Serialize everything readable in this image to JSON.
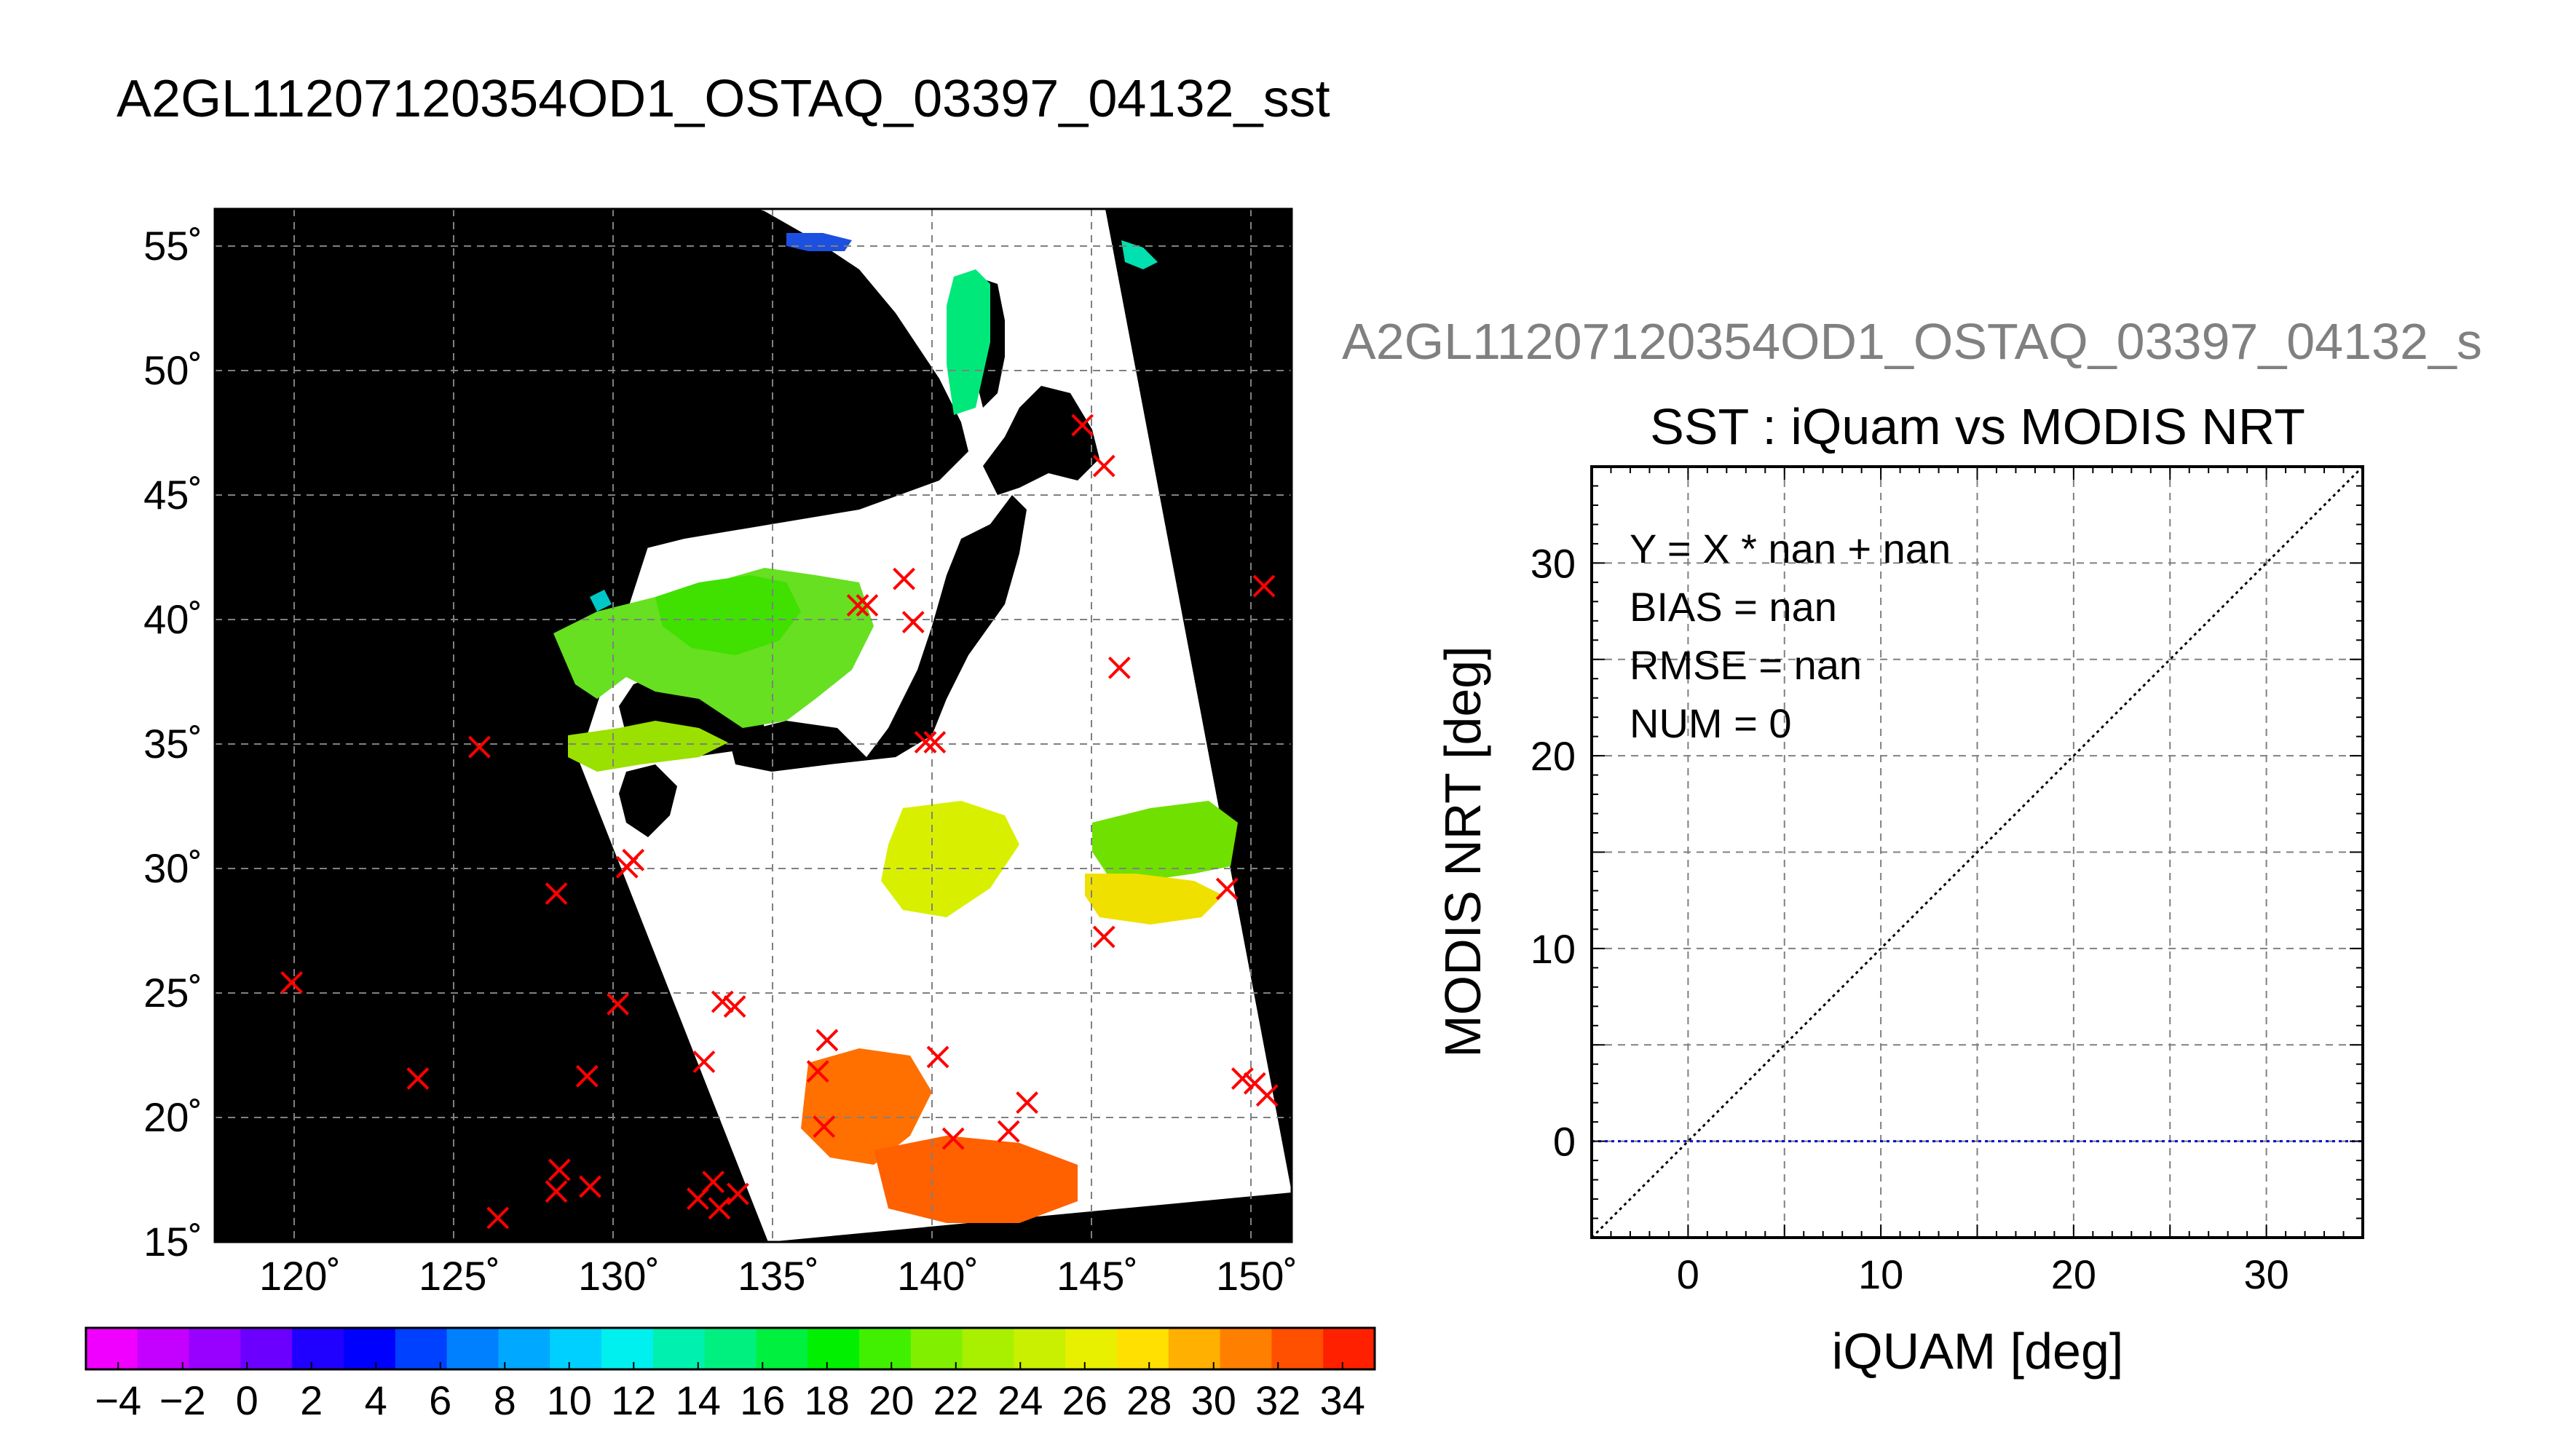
{
  "page_title": "A2GL11207120354OD1_OSTAQ_03397_04132_sst",
  "chart_data": [
    {
      "type": "map",
      "name": "sst-map",
      "lon_range": [
        117,
        152
      ],
      "lat_range": [
        14,
        57
      ],
      "x_ticks": [
        120,
        125,
        130,
        135,
        140,
        145,
        150
      ],
      "y_ticks": [
        15,
        20,
        25,
        30,
        35,
        40,
        45,
        50,
        55
      ],
      "x_tick_labels": [
        "120˚",
        "125˚",
        "130˚",
        "135˚",
        "140˚",
        "145˚",
        "150˚"
      ],
      "y_tick_labels": [
        "15˚",
        "20˚",
        "25˚",
        "30˚",
        "35˚",
        "40˚",
        "45˚",
        "50˚",
        "55˚"
      ],
      "grid": true,
      "background_color": "#000000",
      "swath_color": "#ffffff",
      "marker_color": "#ff0000",
      "markers": [
        {
          "lon": 119.5,
          "lat": 24.8
        },
        {
          "lon": 123.6,
          "lat": 20.8
        },
        {
          "lon": 125.6,
          "lat": 34.6
        },
        {
          "lon": 126.2,
          "lat": 15.0
        },
        {
          "lon": 128.1,
          "lat": 28.5
        },
        {
          "lon": 128.2,
          "lat": 17.0
        },
        {
          "lon": 128.1,
          "lat": 16.1
        },
        {
          "lon": 129.1,
          "lat": 20.9
        },
        {
          "lon": 129.2,
          "lat": 16.3
        },
        {
          "lon": 130.1,
          "lat": 23.9
        },
        {
          "lon": 130.4,
          "lat": 29.6
        },
        {
          "lon": 130.6,
          "lat": 29.9
        },
        {
          "lon": 132.7,
          "lat": 15.8
        },
        {
          "lon": 132.9,
          "lat": 21.5
        },
        {
          "lon": 133.2,
          "lat": 16.5
        },
        {
          "lon": 133.4,
          "lat": 15.4
        },
        {
          "lon": 133.5,
          "lat": 24.0
        },
        {
          "lon": 133.9,
          "lat": 23.8
        },
        {
          "lon": 134.0,
          "lat": 16.0
        },
        {
          "lon": 136.6,
          "lat": 21.1
        },
        {
          "lon": 136.8,
          "lat": 18.8
        },
        {
          "lon": 136.9,
          "lat": 22.4
        },
        {
          "lon": 137.9,
          "lat": 40.5
        },
        {
          "lon": 138.2,
          "lat": 40.5
        },
        {
          "lon": 139.4,
          "lat": 41.6
        },
        {
          "lon": 139.7,
          "lat": 39.8
        },
        {
          "lon": 140.1,
          "lat": 34.8
        },
        {
          "lon": 140.4,
          "lat": 34.8
        },
        {
          "lon": 140.5,
          "lat": 21.7
        },
        {
          "lon": 141.0,
          "lat": 18.3
        },
        {
          "lon": 142.8,
          "lat": 18.6
        },
        {
          "lon": 143.4,
          "lat": 19.8
        },
        {
          "lon": 145.2,
          "lat": 48.0
        },
        {
          "lon": 145.9,
          "lat": 46.3
        },
        {
          "lon": 145.9,
          "lat": 26.7
        },
        {
          "lon": 146.4,
          "lat": 37.9
        },
        {
          "lon": 149.9,
          "lat": 28.7
        },
        {
          "lon": 150.4,
          "lat": 20.8
        },
        {
          "lon": 150.8,
          "lat": 20.6
        },
        {
          "lon": 151.1,
          "lat": 41.3
        },
        {
          "lon": 151.2,
          "lat": 20.1
        }
      ]
    },
    {
      "type": "colorbar",
      "name": "sst-colorbar",
      "range": [
        -5,
        35
      ],
      "tick_values": [
        -4,
        -2,
        0,
        2,
        4,
        6,
        8,
        10,
        12,
        14,
        16,
        18,
        20,
        22,
        24,
        26,
        28,
        30,
        32,
        34
      ],
      "tick_labels": [
        "−4",
        "−2",
        "0",
        "2",
        "4",
        "6",
        "8",
        "10",
        "12",
        "14",
        "16",
        "18",
        "20",
        "22",
        "24",
        "26",
        "28",
        "30",
        "32",
        "34"
      ],
      "colors": [
        "#f000ff",
        "#c400ff",
        "#9800ff",
        "#6c00ff",
        "#2000ff",
        "#0000ff",
        "#0040ff",
        "#0080ff",
        "#00a8ff",
        "#00d0ff",
        "#00f0f0",
        "#00f0b0",
        "#00f080",
        "#00f040",
        "#00f000",
        "#40f000",
        "#80f000",
        "#a8f000",
        "#c8f000",
        "#e8f000",
        "#ffe000",
        "#ffb000",
        "#ff8000",
        "#ff5000",
        "#ff2000"
      ]
    },
    {
      "type": "scatter",
      "name": "sst-scatter",
      "supertitle": "A2GL11207120354OD1_OSTAQ_03397_04132_s",
      "title": "SST : iQuam vs MODIS NRT",
      "xlabel": "iQUAM [deg]",
      "ylabel": "MODIS NRT [deg]",
      "xlim": [
        -5,
        35
      ],
      "ylim": [
        -5,
        35
      ],
      "x_ticks": [
        0,
        10,
        20,
        30
      ],
      "y_ticks": [
        0,
        10,
        20,
        30
      ],
      "x_tick_labels": [
        "0",
        "10",
        "20",
        "30"
      ],
      "y_tick_labels": [
        "0",
        "10",
        "20",
        "30"
      ],
      "grid": true,
      "points": [],
      "reference_lines": [
        {
          "kind": "one-to-one",
          "from": [
            -5,
            -5
          ],
          "to": [
            35,
            35
          ],
          "color": "#000000",
          "style": "dotted"
        },
        {
          "kind": "zero",
          "from": [
            -5,
            0
          ],
          "to": [
            35,
            0
          ],
          "color": "#0000cc",
          "style": "dotted"
        }
      ],
      "stats": [
        "Y = X * nan + nan",
        "BIAS = nan",
        "RMSE = nan",
        "NUM = 0"
      ]
    }
  ]
}
